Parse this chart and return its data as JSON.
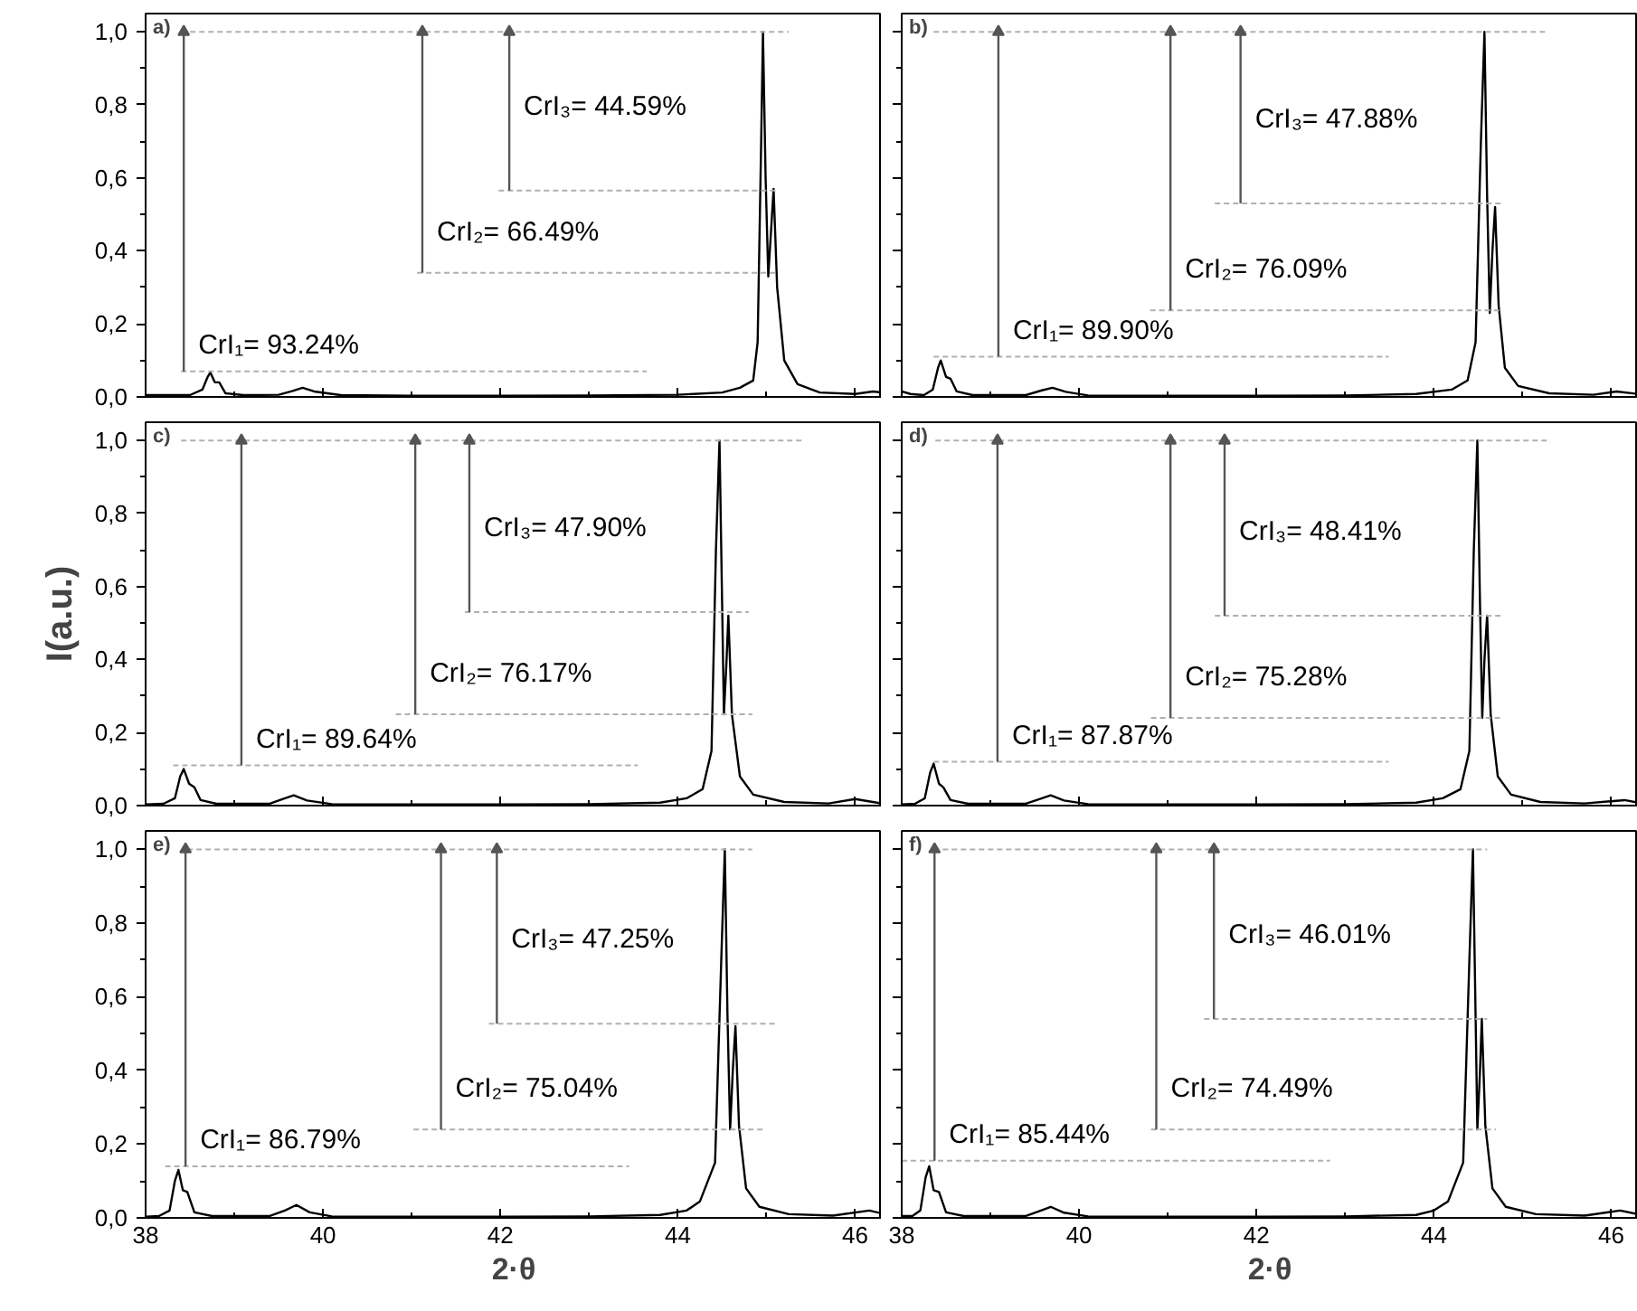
{
  "chart_data": [
    {
      "type": "line",
      "title": "a)",
      "xlim": [
        38,
        46.3
      ],
      "ylim": [
        0,
        1.05
      ],
      "xticks": [
        38,
        40,
        42,
        44,
        46
      ],
      "yticks": [
        {
          "value": 0,
          "label": "0,0"
        },
        {
          "value": 0.2,
          "label": "0,2"
        },
        {
          "value": 0.4,
          "label": "0,4"
        },
        {
          "value": 0.6,
          "label": "0,6"
        },
        {
          "value": 0.8,
          "label": "0,8"
        },
        {
          "value": 1.0,
          "label": "1,0"
        }
      ],
      "tick_labels": "y",
      "series": [
        {
          "color": "#000000",
          "x": [
            38.0,
            38.5,
            38.64,
            38.7,
            38.73,
            38.78,
            38.83,
            38.9,
            39.1,
            39.5,
            39.65,
            39.77,
            39.9,
            40.2,
            41.0,
            42.0,
            43.0,
            44.0,
            44.5,
            44.7,
            44.85,
            44.9,
            44.94,
            44.96,
            44.99,
            45.02,
            45.05,
            45.08,
            45.12,
            45.2,
            45.35,
            45.6,
            46.0,
            46.2,
            46.3
          ],
          "values": [
            0.005,
            0.005,
            0.02,
            0.055,
            0.067,
            0.04,
            0.04,
            0.01,
            0.005,
            0.006,
            0.016,
            0.025,
            0.015,
            0.005,
            0.003,
            0.003,
            0.004,
            0.006,
            0.012,
            0.025,
            0.045,
            0.15,
            0.7,
            1.0,
            0.6,
            0.33,
            0.45,
            0.57,
            0.3,
            0.1,
            0.035,
            0.012,
            0.008,
            0.015,
            0.012
          ]
        },
        {
          "color": "#b0b0b0",
          "line_style": "dashed",
          "x": [
            38.4,
            45.25
          ],
          "values": [
            1.0,
            1.0
          ]
        },
        {
          "color": "#b0b0b0",
          "line_style": "dashed",
          "x": [
            38.4,
            43.65
          ],
          "values": [
            0.07,
            0.07
          ]
        },
        {
          "color": "#b0b0b0",
          "line_style": "dashed",
          "x": [
            41.06,
            45.1
          ],
          "values": [
            0.34,
            0.34
          ]
        },
        {
          "color": "#b0b0b0",
          "line_style": "dashed",
          "x": [
            41.98,
            45.1
          ],
          "values": [
            0.565,
            0.565
          ]
        },
        {
          "color": "#555555",
          "marker": "triangle",
          "x": [
            38.43,
            38.43
          ],
          "values": [
            0.07,
            1.0
          ]
        },
        {
          "color": "#555555",
          "marker": "triangle",
          "x": [
            41.12,
            41.12
          ],
          "values": [
            0.34,
            1.0
          ]
        },
        {
          "color": "#555555",
          "marker": "triangle",
          "x": [
            42.1,
            42.1
          ],
          "values": [
            0.565,
            1.0
          ]
        }
      ],
      "annotations": [
        "CrI₁= 93.24%",
        "CrI₂= 66.49%",
        "CrI₃= 44.59%"
      ]
    },
    {
      "type": "line",
      "title": "b)",
      "xlim": [
        38,
        46.3
      ],
      "ylim": [
        0,
        1.05
      ],
      "xticks": [
        38,
        40,
        42,
        44,
        46
      ],
      "yticks": [
        0,
        0.2,
        0.4,
        0.6,
        0.8,
        1.0
      ],
      "tick_labels": false,
      "series": [
        {
          "color": "#000000",
          "x": [
            38.0,
            38.1,
            38.25,
            38.35,
            38.41,
            38.44,
            38.5,
            38.55,
            38.62,
            38.8,
            39.4,
            39.58,
            39.7,
            39.85,
            40.1,
            41.0,
            42.0,
            43.0,
            43.8,
            44.2,
            44.38,
            44.47,
            44.53,
            44.57,
            44.6,
            44.63,
            44.66,
            44.69,
            44.73,
            44.8,
            44.95,
            45.3,
            45.8,
            46.06,
            46.3
          ],
          "values": [
            0.015,
            0.008,
            0.005,
            0.02,
            0.08,
            0.1,
            0.055,
            0.05,
            0.015,
            0.005,
            0.005,
            0.018,
            0.025,
            0.014,
            0.004,
            0.003,
            0.003,
            0.004,
            0.008,
            0.02,
            0.045,
            0.15,
            0.7,
            1.0,
            0.55,
            0.23,
            0.4,
            0.52,
            0.25,
            0.08,
            0.03,
            0.01,
            0.006,
            0.015,
            0.008
          ]
        },
        {
          "color": "#b0b0b0",
          "line_style": "dashed",
          "x": [
            38.36,
            45.27
          ],
          "values": [
            1.0,
            1.0
          ]
        },
        {
          "color": "#b0b0b0",
          "line_style": "dashed",
          "x": [
            38.36,
            43.49
          ],
          "values": [
            0.11,
            0.11
          ]
        },
        {
          "color": "#b0b0b0",
          "line_style": "dashed",
          "x": [
            40.8,
            44.77
          ],
          "values": [
            0.237,
            0.237
          ]
        },
        {
          "color": "#b0b0b0",
          "line_style": "dashed",
          "x": [
            41.53,
            44.77
          ],
          "values": [
            0.53,
            0.53
          ]
        },
        {
          "color": "#555555",
          "marker": "triangle",
          "x": [
            39.09,
            39.09
          ],
          "values": [
            0.11,
            1.0
          ]
        },
        {
          "color": "#555555",
          "marker": "triangle",
          "x": [
            41.03,
            41.03
          ],
          "values": [
            0.237,
            1.0
          ]
        },
        {
          "color": "#555555",
          "marker": "triangle",
          "x": [
            41.82,
            41.82
          ],
          "values": [
            0.53,
            1.0
          ]
        }
      ],
      "annotations": [
        "CrI₁= 89.90%",
        "CrI₂= 76.09%",
        "CrI₃= 47.88%"
      ]
    },
    {
      "type": "line",
      "title": "c)",
      "ylabel": "I(a.u.)",
      "xlim": [
        38,
        46.3
      ],
      "ylim": [
        0,
        1.05
      ],
      "xticks": [
        38,
        40,
        42,
        44,
        46
      ],
      "yticks": [
        {
          "value": 0,
          "label": "0,0"
        },
        {
          "value": 0.2,
          "label": "0,2"
        },
        {
          "value": 0.4,
          "label": "0,4"
        },
        {
          "value": 0.6,
          "label": "0,6"
        },
        {
          "value": 0.8,
          "label": "0,8"
        },
        {
          "value": 1.0,
          "label": "1,0"
        }
      ],
      "tick_labels": "y",
      "series": [
        {
          "color": "#000000",
          "x": [
            38.0,
            38.2,
            38.33,
            38.39,
            38.43,
            38.49,
            38.55,
            38.62,
            38.8,
            39.4,
            39.55,
            39.67,
            39.82,
            40.1,
            41.0,
            42.0,
            43.0,
            43.8,
            44.1,
            44.28,
            44.38,
            44.43,
            44.47,
            44.5,
            44.52,
            44.55,
            44.57,
            44.61,
            44.7,
            44.85,
            45.2,
            45.7,
            46.0,
            46.3
          ],
          "values": [
            0.003,
            0.005,
            0.02,
            0.08,
            0.1,
            0.06,
            0.05,
            0.015,
            0.005,
            0.005,
            0.018,
            0.028,
            0.014,
            0.004,
            0.003,
            0.003,
            0.004,
            0.008,
            0.02,
            0.045,
            0.15,
            0.7,
            1.0,
            0.55,
            0.25,
            0.4,
            0.52,
            0.25,
            0.08,
            0.03,
            0.01,
            0.006,
            0.018,
            0.006
          ]
        },
        {
          "color": "#b0b0b0",
          "line_style": "dashed",
          "x": [
            38.4,
            45.4
          ],
          "values": [
            1.0,
            1.0
          ]
        },
        {
          "color": "#b0b0b0",
          "line_style": "dashed",
          "x": [
            38.31,
            43.55
          ],
          "values": [
            0.11,
            0.11
          ]
        },
        {
          "color": "#b0b0b0",
          "line_style": "dashed",
          "x": [
            40.82,
            44.84
          ],
          "values": [
            0.25,
            0.25
          ]
        },
        {
          "color": "#b0b0b0",
          "line_style": "dashed",
          "x": [
            41.6,
            44.8
          ],
          "values": [
            0.53,
            0.53
          ]
        },
        {
          "color": "#555555",
          "marker": "triangle",
          "x": [
            39.08,
            39.08
          ],
          "values": [
            0.11,
            1.0
          ]
        },
        {
          "color": "#555555",
          "marker": "triangle",
          "x": [
            41.04,
            41.04
          ],
          "values": [
            0.25,
            1.0
          ]
        },
        {
          "color": "#555555",
          "marker": "triangle",
          "x": [
            41.65,
            41.65
          ],
          "values": [
            0.53,
            1.0
          ]
        }
      ],
      "annotations": [
        "CrI₁= 89.64%",
        "CrI₂= 76.17%",
        "CrI₃= 47.90%"
      ]
    },
    {
      "type": "line",
      "title": "d)",
      "xlim": [
        38,
        46.3
      ],
      "ylim": [
        0,
        1.05
      ],
      "xticks": [
        38,
        40,
        42,
        44,
        46
      ],
      "yticks": [
        0,
        0.2,
        0.4,
        0.6,
        0.8,
        1.0
      ],
      "tick_labels": false,
      "series": [
        {
          "color": "#000000",
          "x": [
            38.0,
            38.15,
            38.26,
            38.32,
            38.36,
            38.42,
            38.47,
            38.55,
            38.75,
            39.4,
            39.56,
            39.68,
            39.83,
            40.1,
            41.0,
            42.0,
            43.0,
            43.8,
            44.1,
            44.3,
            44.4,
            44.45,
            44.49,
            44.52,
            44.545,
            44.57,
            44.6,
            44.64,
            44.72,
            44.87,
            45.2,
            45.7,
            46.15,
            46.3
          ],
          "values": [
            0.003,
            0.005,
            0.02,
            0.09,
            0.115,
            0.06,
            0.05,
            0.015,
            0.005,
            0.005,
            0.018,
            0.028,
            0.014,
            0.004,
            0.003,
            0.003,
            0.004,
            0.008,
            0.02,
            0.045,
            0.15,
            0.7,
            1.0,
            0.55,
            0.24,
            0.4,
            0.52,
            0.25,
            0.08,
            0.03,
            0.01,
            0.006,
            0.015,
            0.008
          ]
        },
        {
          "color": "#b0b0b0",
          "line_style": "dashed",
          "x": [
            38.38,
            45.31
          ],
          "values": [
            1.0,
            1.0
          ]
        },
        {
          "color": "#b0b0b0",
          "line_style": "dashed",
          "x": [
            38.36,
            43.49
          ],
          "values": [
            0.12,
            0.12
          ]
        },
        {
          "color": "#b0b0b0",
          "line_style": "dashed",
          "x": [
            40.81,
            44.77
          ],
          "values": [
            0.24,
            0.24
          ]
        },
        {
          "color": "#b0b0b0",
          "line_style": "dashed",
          "x": [
            41.53,
            44.75
          ],
          "values": [
            0.52,
            0.52
          ]
        },
        {
          "color": "#555555",
          "marker": "triangle",
          "x": [
            39.08,
            39.08
          ],
          "values": [
            0.12,
            1.0
          ]
        },
        {
          "color": "#555555",
          "marker": "triangle",
          "x": [
            41.03,
            41.03
          ],
          "values": [
            0.24,
            1.0
          ]
        },
        {
          "color": "#555555",
          "marker": "triangle",
          "x": [
            41.64,
            41.64
          ],
          "values": [
            0.52,
            1.0
          ]
        }
      ],
      "annotations": [
        "CrI₁= 87.87%",
        "CrI₂= 75.28%",
        "CrI₃= 48.41%"
      ]
    },
    {
      "type": "line",
      "title": "e)",
      "xlabel": "2·θ",
      "xlim": [
        38,
        46.3
      ],
      "ylim": [
        0,
        1.05
      ],
      "xticks": [
        38,
        40,
        42,
        44,
        46
      ],
      "yticks": [
        {
          "value": 0,
          "label": "0,0"
        },
        {
          "value": 0.2,
          "label": "0,2"
        },
        {
          "value": 0.4,
          "label": "0,4"
        },
        {
          "value": 0.6,
          "label": "0,6"
        },
        {
          "value": 0.8,
          "label": "0,8"
        },
        {
          "value": 1.0,
          "label": "1,0"
        }
      ],
      "series": [
        {
          "color": "#000000",
          "x": [
            38.0,
            38.15,
            38.27,
            38.33,
            38.37,
            38.42,
            38.47,
            38.55,
            38.75,
            39.4,
            39.57,
            39.7,
            39.85,
            40.1,
            41.0,
            42.0,
            43.0,
            43.8,
            44.1,
            44.25,
            44.42,
            44.49,
            44.53,
            44.56,
            44.59,
            44.62,
            44.65,
            44.69,
            44.77,
            44.92,
            45.25,
            45.75,
            46.16,
            46.3
          ],
          "values": [
            0.003,
            0.005,
            0.02,
            0.1,
            0.13,
            0.075,
            0.07,
            0.015,
            0.005,
            0.005,
            0.02,
            0.035,
            0.015,
            0.004,
            0.003,
            0.003,
            0.004,
            0.008,
            0.02,
            0.045,
            0.15,
            0.7,
            1.0,
            0.55,
            0.24,
            0.4,
            0.52,
            0.25,
            0.08,
            0.03,
            0.01,
            0.006,
            0.02,
            0.012
          ]
        },
        {
          "color": "#b0b0b0",
          "line_style": "dashed",
          "x": [
            38.47,
            44.84
          ],
          "values": [
            1.0,
            1.0
          ]
        },
        {
          "color": "#b0b0b0",
          "line_style": "dashed",
          "x": [
            38.22,
            43.45
          ],
          "values": [
            0.14,
            0.14
          ]
        },
        {
          "color": "#b0b0b0",
          "line_style": "dashed",
          "x": [
            41.02,
            44.98
          ],
          "values": [
            0.24,
            0.24
          ]
        },
        {
          "color": "#b0b0b0",
          "line_style": "dashed",
          "x": [
            41.87,
            45.1
          ],
          "values": [
            0.527,
            0.527
          ]
        },
        {
          "color": "#555555",
          "marker": "triangle",
          "x": [
            38.45,
            38.45
          ],
          "values": [
            0.14,
            1.0
          ]
        },
        {
          "color": "#555555",
          "marker": "triangle",
          "x": [
            41.33,
            41.33
          ],
          "values": [
            0.24,
            1.0
          ]
        },
        {
          "color": "#555555",
          "marker": "triangle",
          "x": [
            41.96,
            41.96
          ],
          "values": [
            0.527,
            1.0
          ]
        }
      ],
      "annotations": [
        "CrI₁= 86.79%",
        "CrI₂= 75.04%",
        "CrI₃= 47.25%"
      ]
    },
    {
      "type": "line",
      "title": "f)",
      "xlabel": "2·θ",
      "xlim": [
        38,
        46.3
      ],
      "ylim": [
        0,
        1.05
      ],
      "xticks": [
        38,
        40,
        42,
        44,
        46
      ],
      "yticks": [
        0,
        0.2,
        0.4,
        0.6,
        0.8,
        1.0
      ],
      "tick_labels": "x",
      "series": [
        {
          "color": "#000000",
          "x": [
            38.0,
            38.12,
            38.21,
            38.27,
            38.31,
            38.36,
            38.42,
            38.5,
            38.7,
            39.4,
            39.55,
            39.68,
            39.83,
            40.1,
            41.0,
            42.0,
            43.0,
            43.8,
            44.0,
            44.16,
            44.33,
            44.4,
            44.44,
            44.47,
            44.49,
            44.52,
            44.54,
            44.58,
            44.66,
            44.81,
            45.15,
            45.7,
            46.1,
            46.3
          ],
          "values": [
            0.005,
            0.005,
            0.02,
            0.11,
            0.14,
            0.075,
            0.07,
            0.015,
            0.005,
            0.005,
            0.018,
            0.03,
            0.014,
            0.004,
            0.003,
            0.003,
            0.004,
            0.008,
            0.02,
            0.045,
            0.15,
            0.7,
            1.0,
            0.55,
            0.24,
            0.4,
            0.54,
            0.25,
            0.08,
            0.03,
            0.01,
            0.006,
            0.02,
            0.01
          ]
        },
        {
          "color": "#b0b0b0",
          "line_style": "dashed",
          "x": [
            38.36,
            44.6
          ],
          "values": [
            1.0,
            1.0
          ]
        },
        {
          "color": "#b0b0b0",
          "line_style": "dashed",
          "x": [
            38.0,
            42.83
          ],
          "values": [
            0.155,
            0.155
          ]
        },
        {
          "color": "#b0b0b0",
          "line_style": "dashed",
          "x": [
            40.81,
            44.7
          ],
          "values": [
            0.24,
            0.24
          ]
        },
        {
          "color": "#b0b0b0",
          "line_style": "dashed",
          "x": [
            41.41,
            44.6
          ],
          "values": [
            0.54,
            0.54
          ]
        },
        {
          "color": "#555555",
          "marker": "triangle",
          "x": [
            38.37,
            38.37
          ],
          "values": [
            0.155,
            1.0
          ]
        },
        {
          "color": "#555555",
          "marker": "triangle",
          "x": [
            40.87,
            40.87
          ],
          "values": [
            0.24,
            1.0
          ]
        },
        {
          "color": "#555555",
          "marker": "triangle",
          "x": [
            41.52,
            41.52
          ],
          "values": [
            0.54,
            1.0
          ]
        }
      ],
      "annotations": [
        "CrI₁= 85.44%",
        "CrI₂= 74.49%",
        "CrI₃= 46.01%"
      ]
    }
  ]
}
